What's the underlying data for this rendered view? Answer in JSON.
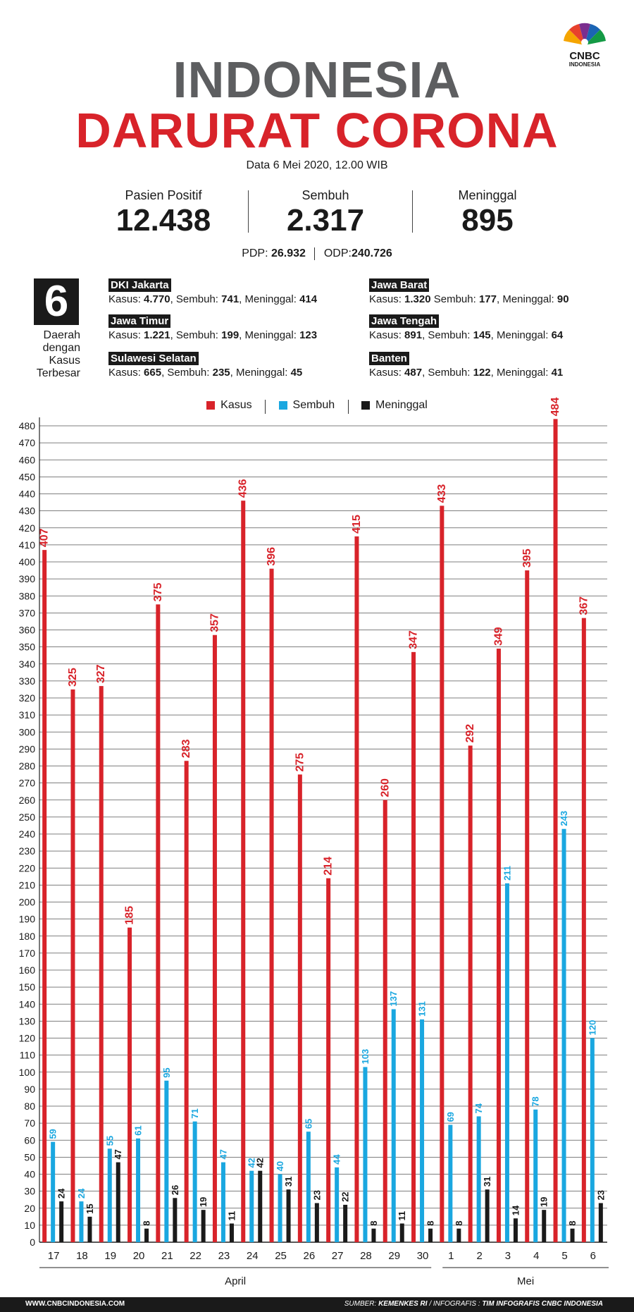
{
  "header": {
    "title_line1": "INDONESIA",
    "title_line2": "DARURAT CORONA",
    "date": "Data 6 Mei 2020, 12.00 WIB",
    "logo_text1": "CNBC",
    "logo_text2": "INDONESIA"
  },
  "stats": [
    {
      "label": "Pasien Positif",
      "value": "12.438"
    },
    {
      "label": "Sembuh",
      "value": "2.317"
    },
    {
      "label": "Meninggal",
      "value": "895"
    }
  ],
  "pdp": {
    "label": "PDP:",
    "value": "26.932"
  },
  "odp": {
    "label": "ODP:",
    "value": "240.726"
  },
  "regions_box": {
    "number": "6",
    "caption_lines": [
      "Daerah",
      "dengan",
      "Kasus",
      "Terbesar"
    ]
  },
  "regions": [
    {
      "name": "DKI Jakarta",
      "kasus": "4.770",
      "sembuh": "741",
      "meninggal": "414"
    },
    {
      "name": "Jawa Barat",
      "kasus": "1.320",
      "sembuh": "177",
      "meninggal": "90"
    },
    {
      "name": "Jawa Timur",
      "kasus": "1.221",
      "sembuh": "199",
      "meninggal": "123"
    },
    {
      "name": "Jawa Tengah",
      "kasus": "891",
      "sembuh": "145",
      "meninggal": "64"
    },
    {
      "name": "Sulawesi Selatan",
      "kasus": "665",
      "sembuh": "235",
      "meninggal": "45"
    },
    {
      "name": "Banten",
      "kasus": "487",
      "sembuh": "122",
      "meninggal": "41"
    }
  ],
  "region_labels": {
    "kasus": "Kasus:",
    "sembuh": "Sembuh:",
    "meninggal": "Meninggal:"
  },
  "legend": [
    {
      "name": "Kasus",
      "color": "#d8232a"
    },
    {
      "name": "Sembuh",
      "color": "#1aa7e0"
    },
    {
      "name": "Meninggal",
      "color": "#1a1a1a"
    }
  ],
  "chart_data": {
    "type": "bar",
    "categories": [
      "17",
      "18",
      "19",
      "20",
      "21",
      "22",
      "23",
      "24",
      "25",
      "26",
      "27",
      "28",
      "29",
      "30",
      "1",
      "2",
      "3",
      "4",
      "5",
      "6"
    ],
    "groups": [
      {
        "label": "April",
        "count": 14
      },
      {
        "label": "Mei",
        "count": 6
      }
    ],
    "series": [
      {
        "name": "Kasus",
        "color": "#d8232a",
        "values": [
          407,
          325,
          327,
          185,
          375,
          283,
          357,
          436,
          396,
          275,
          214,
          415,
          260,
          347,
          433,
          292,
          349,
          395,
          484,
          367
        ]
      },
      {
        "name": "Sembuh",
        "color": "#1aa7e0",
        "values": [
          59,
          24,
          55,
          61,
          95,
          71,
          47,
          42,
          40,
          65,
          44,
          103,
          137,
          131,
          69,
          74,
          211,
          78,
          243,
          120
        ]
      },
      {
        "name": "Meninggal",
        "color": "#1a1a1a",
        "values": [
          24,
          15,
          47,
          8,
          26,
          19,
          11,
          42,
          31,
          23,
          22,
          8,
          11,
          8,
          8,
          31,
          14,
          19,
          8,
          23
        ]
      }
    ],
    "ylim": [
      0,
      480
    ],
    "ytick_step": 10,
    "grid": true,
    "legend_position": "top-center"
  },
  "footer": {
    "website": "WWW.CNBCINDONESIA.COM",
    "source_label": "SUMBER:",
    "source_value": "KEMENKES RI",
    "credit_label": "/ INFOGRAFIS :",
    "credit_value": "TIM INFOGRAFIS CNBC INDONESIA"
  }
}
